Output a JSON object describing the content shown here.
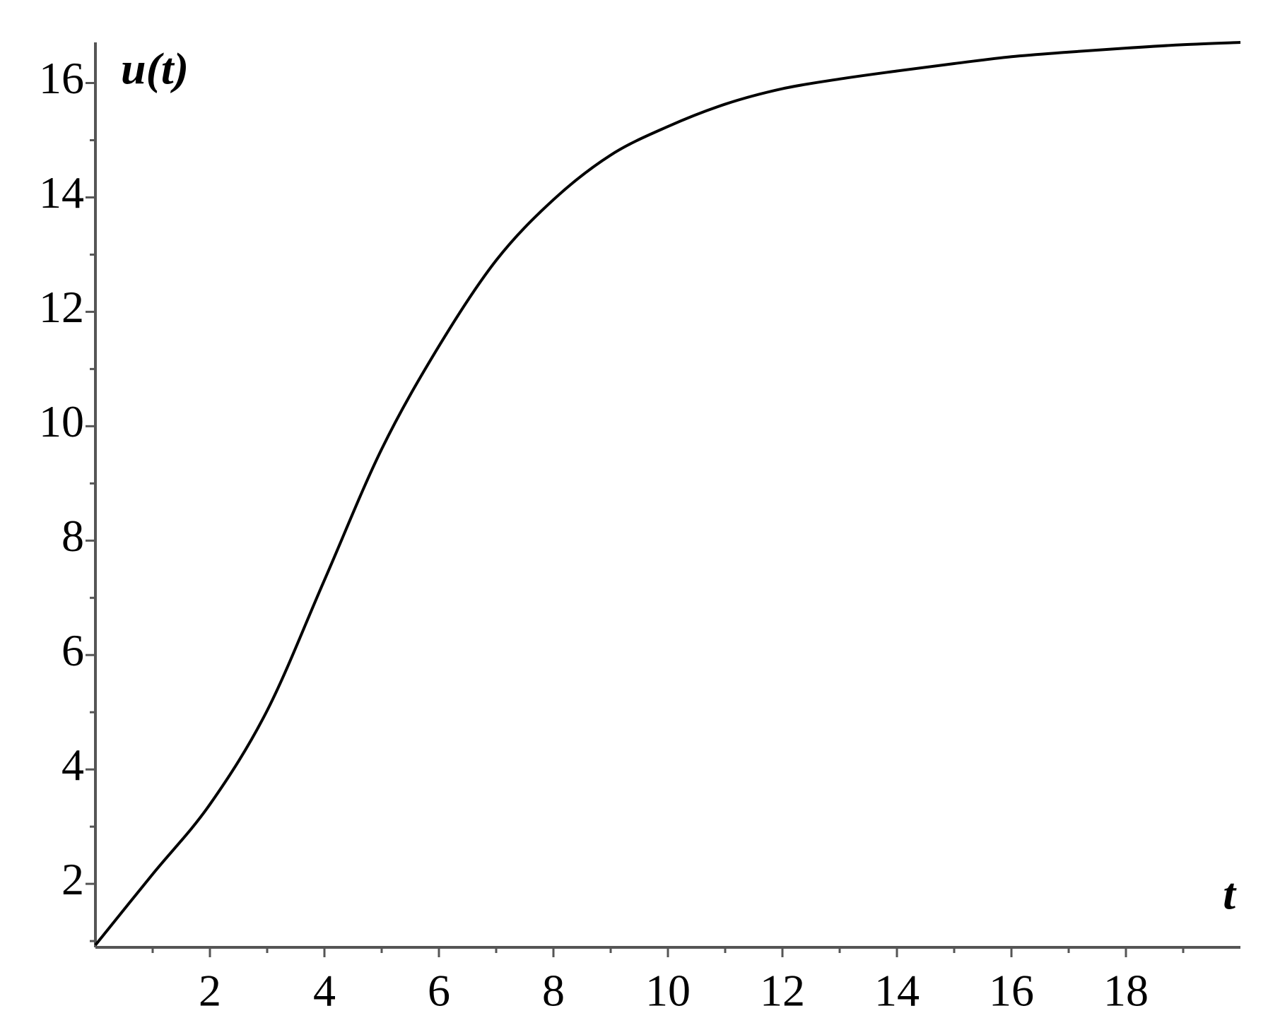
{
  "chart_data": {
    "type": "line",
    "x_label": "t",
    "y_label": "u(t)",
    "x": [
      0,
      1,
      2,
      3,
      4,
      5,
      6,
      7,
      8,
      9,
      10,
      11,
      12,
      13,
      14,
      15,
      16,
      17,
      18,
      19,
      20
    ],
    "series": [
      {
        "name": "u(t)",
        "color": "#000000",
        "values": [
          0.93,
          2.17,
          3.39,
          5.03,
          7.31,
          9.6,
          11.4,
          12.9,
          13.96,
          14.74,
          15.24,
          15.63,
          15.9,
          16.07,
          16.21,
          16.34,
          16.46,
          16.54,
          16.61,
          16.67,
          16.71
        ]
      }
    ],
    "xlim": [
      0,
      20
    ],
    "ylim": [
      0.89,
      16.71
    ],
    "xticks": [
      2,
      4,
      6,
      8,
      10,
      12,
      14,
      16,
      18
    ],
    "yticks": [
      2,
      4,
      6,
      8,
      10,
      12,
      14,
      16
    ],
    "xminorticks": [
      1,
      3,
      5,
      7,
      9,
      11,
      13,
      15,
      17,
      19
    ],
    "yminorticks": [
      1,
      3,
      5,
      7,
      9,
      11,
      13,
      15
    ],
    "grid": false
  }
}
